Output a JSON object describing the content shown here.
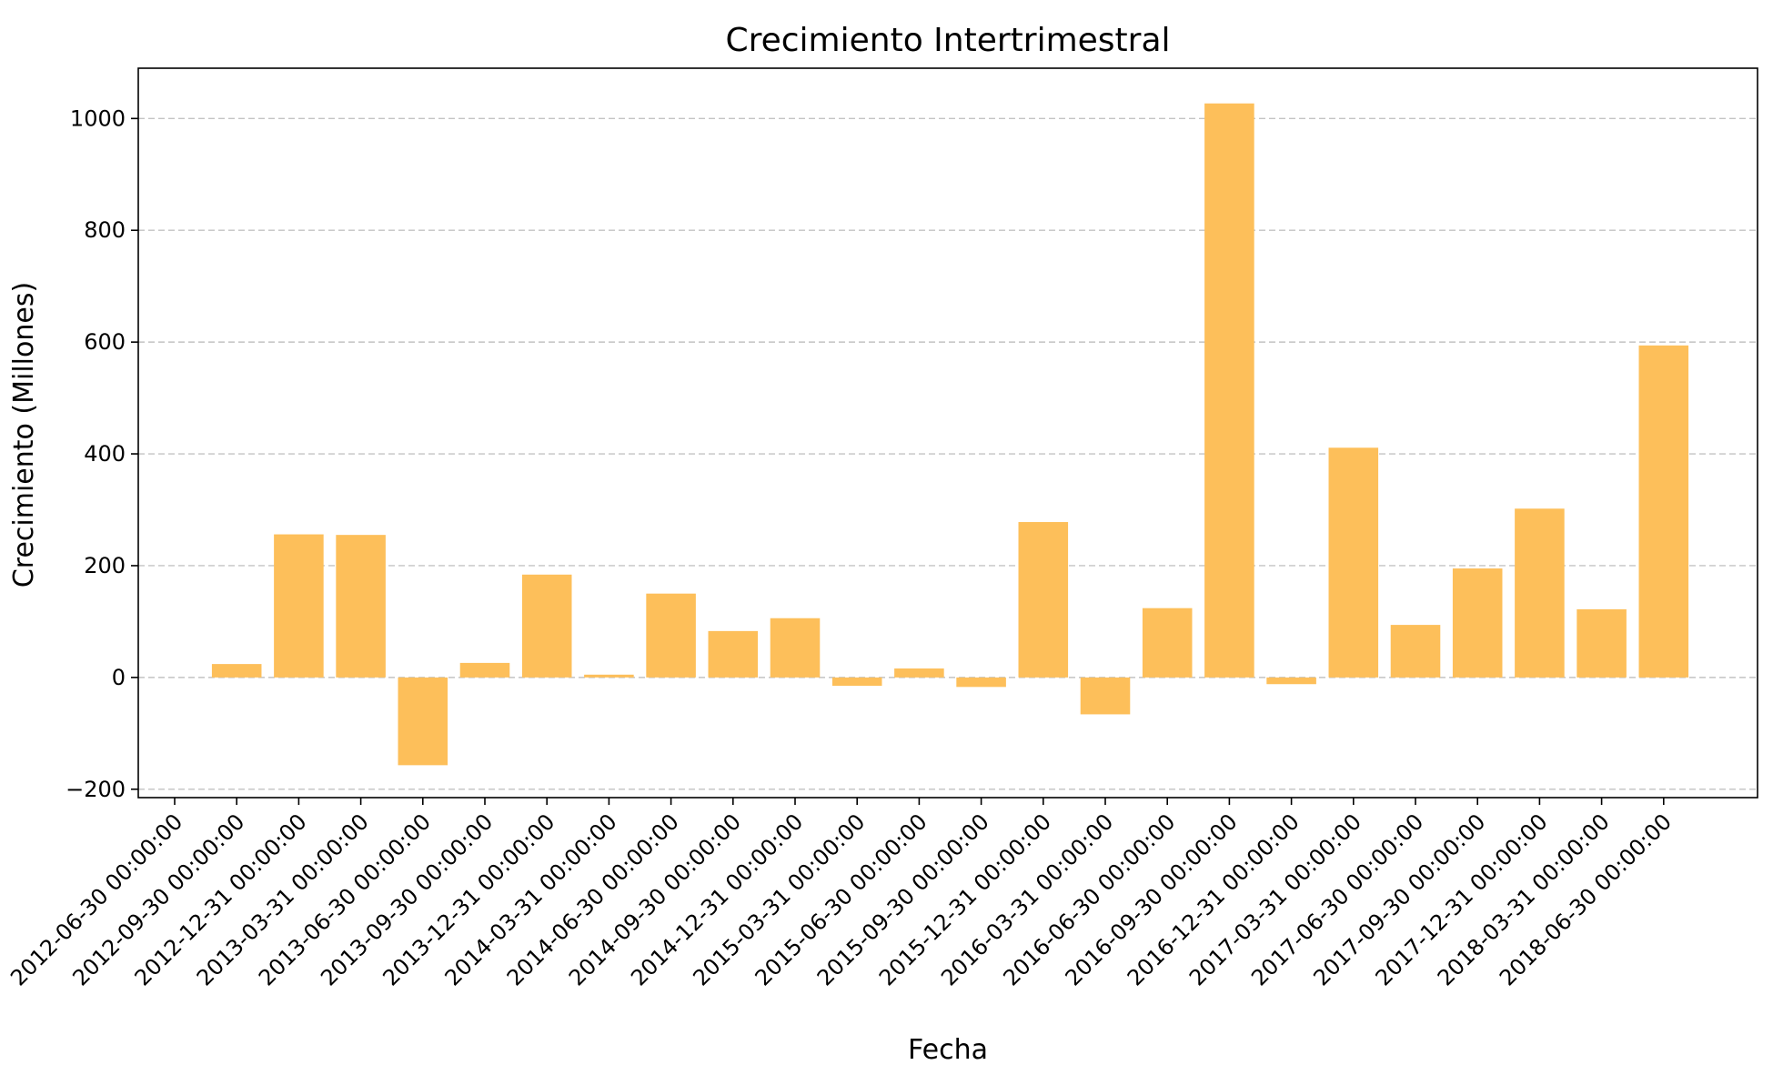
{
  "chart_data": {
    "type": "bar",
    "title": "Crecimiento Intertrimestral",
    "xlabel": "Fecha",
    "ylabel": "Crecimiento (Millones)",
    "ylim": [
      -215,
      1090
    ],
    "yticks": [
      -200,
      0,
      200,
      400,
      600,
      800,
      1000
    ],
    "y_tick_labels": [
      "−200",
      "0",
      "200",
      "400",
      "600",
      "800",
      "1000"
    ],
    "grid": "horizontal dashed",
    "bar_color": "#FDBF5A",
    "categories": [
      "2012-06-30 00:00:00",
      "2012-09-30 00:00:00",
      "2012-12-31 00:00:00",
      "2013-03-31 00:00:00",
      "2013-06-30 00:00:00",
      "2013-09-30 00:00:00",
      "2013-12-31 00:00:00",
      "2014-03-31 00:00:00",
      "2014-06-30 00:00:00",
      "2014-09-30 00:00:00",
      "2014-12-31 00:00:00",
      "2015-03-31 00:00:00",
      "2015-06-30 00:00:00",
      "2015-09-30 00:00:00",
      "2015-12-31 00:00:00",
      "2016-03-31 00:00:00",
      "2016-06-30 00:00:00",
      "2016-09-30 00:00:00",
      "2016-12-31 00:00:00",
      "2017-03-31 00:00:00",
      "2017-06-30 00:00:00",
      "2017-09-30 00:00:00",
      "2017-12-31 00:00:00",
      "2018-03-31 00:00:00",
      "2018-06-30 00:00:00"
    ],
    "values": [
      null,
      24,
      256,
      255,
      -157,
      26,
      184,
      5,
      150,
      83,
      106,
      -15,
      16,
      -17,
      278,
      -66,
      124,
      1027,
      -12,
      411,
      94,
      195,
      302,
      122,
      594
    ]
  }
}
